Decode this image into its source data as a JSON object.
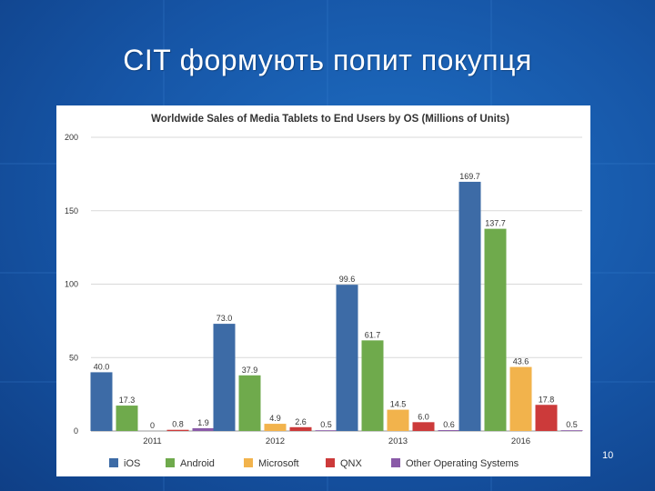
{
  "slide": {
    "title": "СІТ формують попит покупця",
    "page_number": "10"
  },
  "colors": {
    "background": "#1655a6",
    "iOS": "#3d6ba6",
    "Android": "#6faa4c",
    "Microsoft": "#f2b34c",
    "QNX": "#cc3a3a",
    "Other Operating Systems": "#8a5aa8"
  },
  "chart_data": {
    "type": "bar",
    "title": "Worldwide Sales of Media Tablets to End Users by OS (Millions of Units)",
    "xlabel": "",
    "ylabel": "",
    "ylim": [
      0,
      200
    ],
    "yticks": [
      0,
      50,
      100,
      150,
      200
    ],
    "grid": true,
    "legend_position": "bottom",
    "categories": [
      "2011",
      "2012",
      "2013",
      "2016"
    ],
    "series": [
      {
        "name": "iOS",
        "values": [
          40.0,
          73.0,
          99.6,
          169.7
        ],
        "labels": [
          "40.0",
          "73.0",
          "99.6",
          "169.7"
        ]
      },
      {
        "name": "Android",
        "values": [
          17.3,
          37.9,
          61.7,
          137.7
        ],
        "labels": [
          "17.3",
          "37.9",
          "61.7",
          "137.7"
        ]
      },
      {
        "name": "Microsoft",
        "values": [
          0,
          4.9,
          14.5,
          43.6
        ],
        "labels": [
          "0",
          "4.9",
          "14.5",
          "43.6"
        ]
      },
      {
        "name": "QNX",
        "values": [
          0.8,
          2.6,
          6.0,
          17.8
        ],
        "labels": [
          "0.8",
          "2.6",
          "6.0",
          "17.8"
        ]
      },
      {
        "name": "Other Operating Systems",
        "values": [
          1.9,
          0.5,
          0.6,
          0.5
        ],
        "labels": [
          "1.9",
          "0.5",
          "0.6",
          "0.5"
        ]
      }
    ]
  }
}
